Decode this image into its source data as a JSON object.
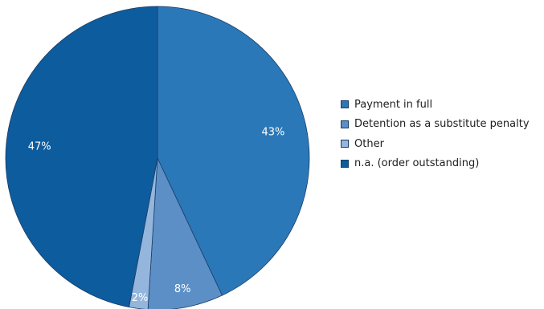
{
  "chart_data": {
    "type": "pie",
    "series": [
      {
        "name": "Payment in full",
        "value": 43,
        "label": "43%",
        "color": "#2b78b8"
      },
      {
        "name": "Detention as a substitute penalty",
        "value": 8,
        "label": "8%",
        "color": "#5d8fc7"
      },
      {
        "name": "Other",
        "value": 2,
        "label": "2%",
        "color": "#94b6dd"
      },
      {
        "name": "n.a. (order outstanding)",
        "value": 47,
        "label": "47%",
        "color": "#0d5c9e"
      }
    ],
    "start_angle": "12 o'clock",
    "direction": "clockwise",
    "legend_placement": "right"
  }
}
